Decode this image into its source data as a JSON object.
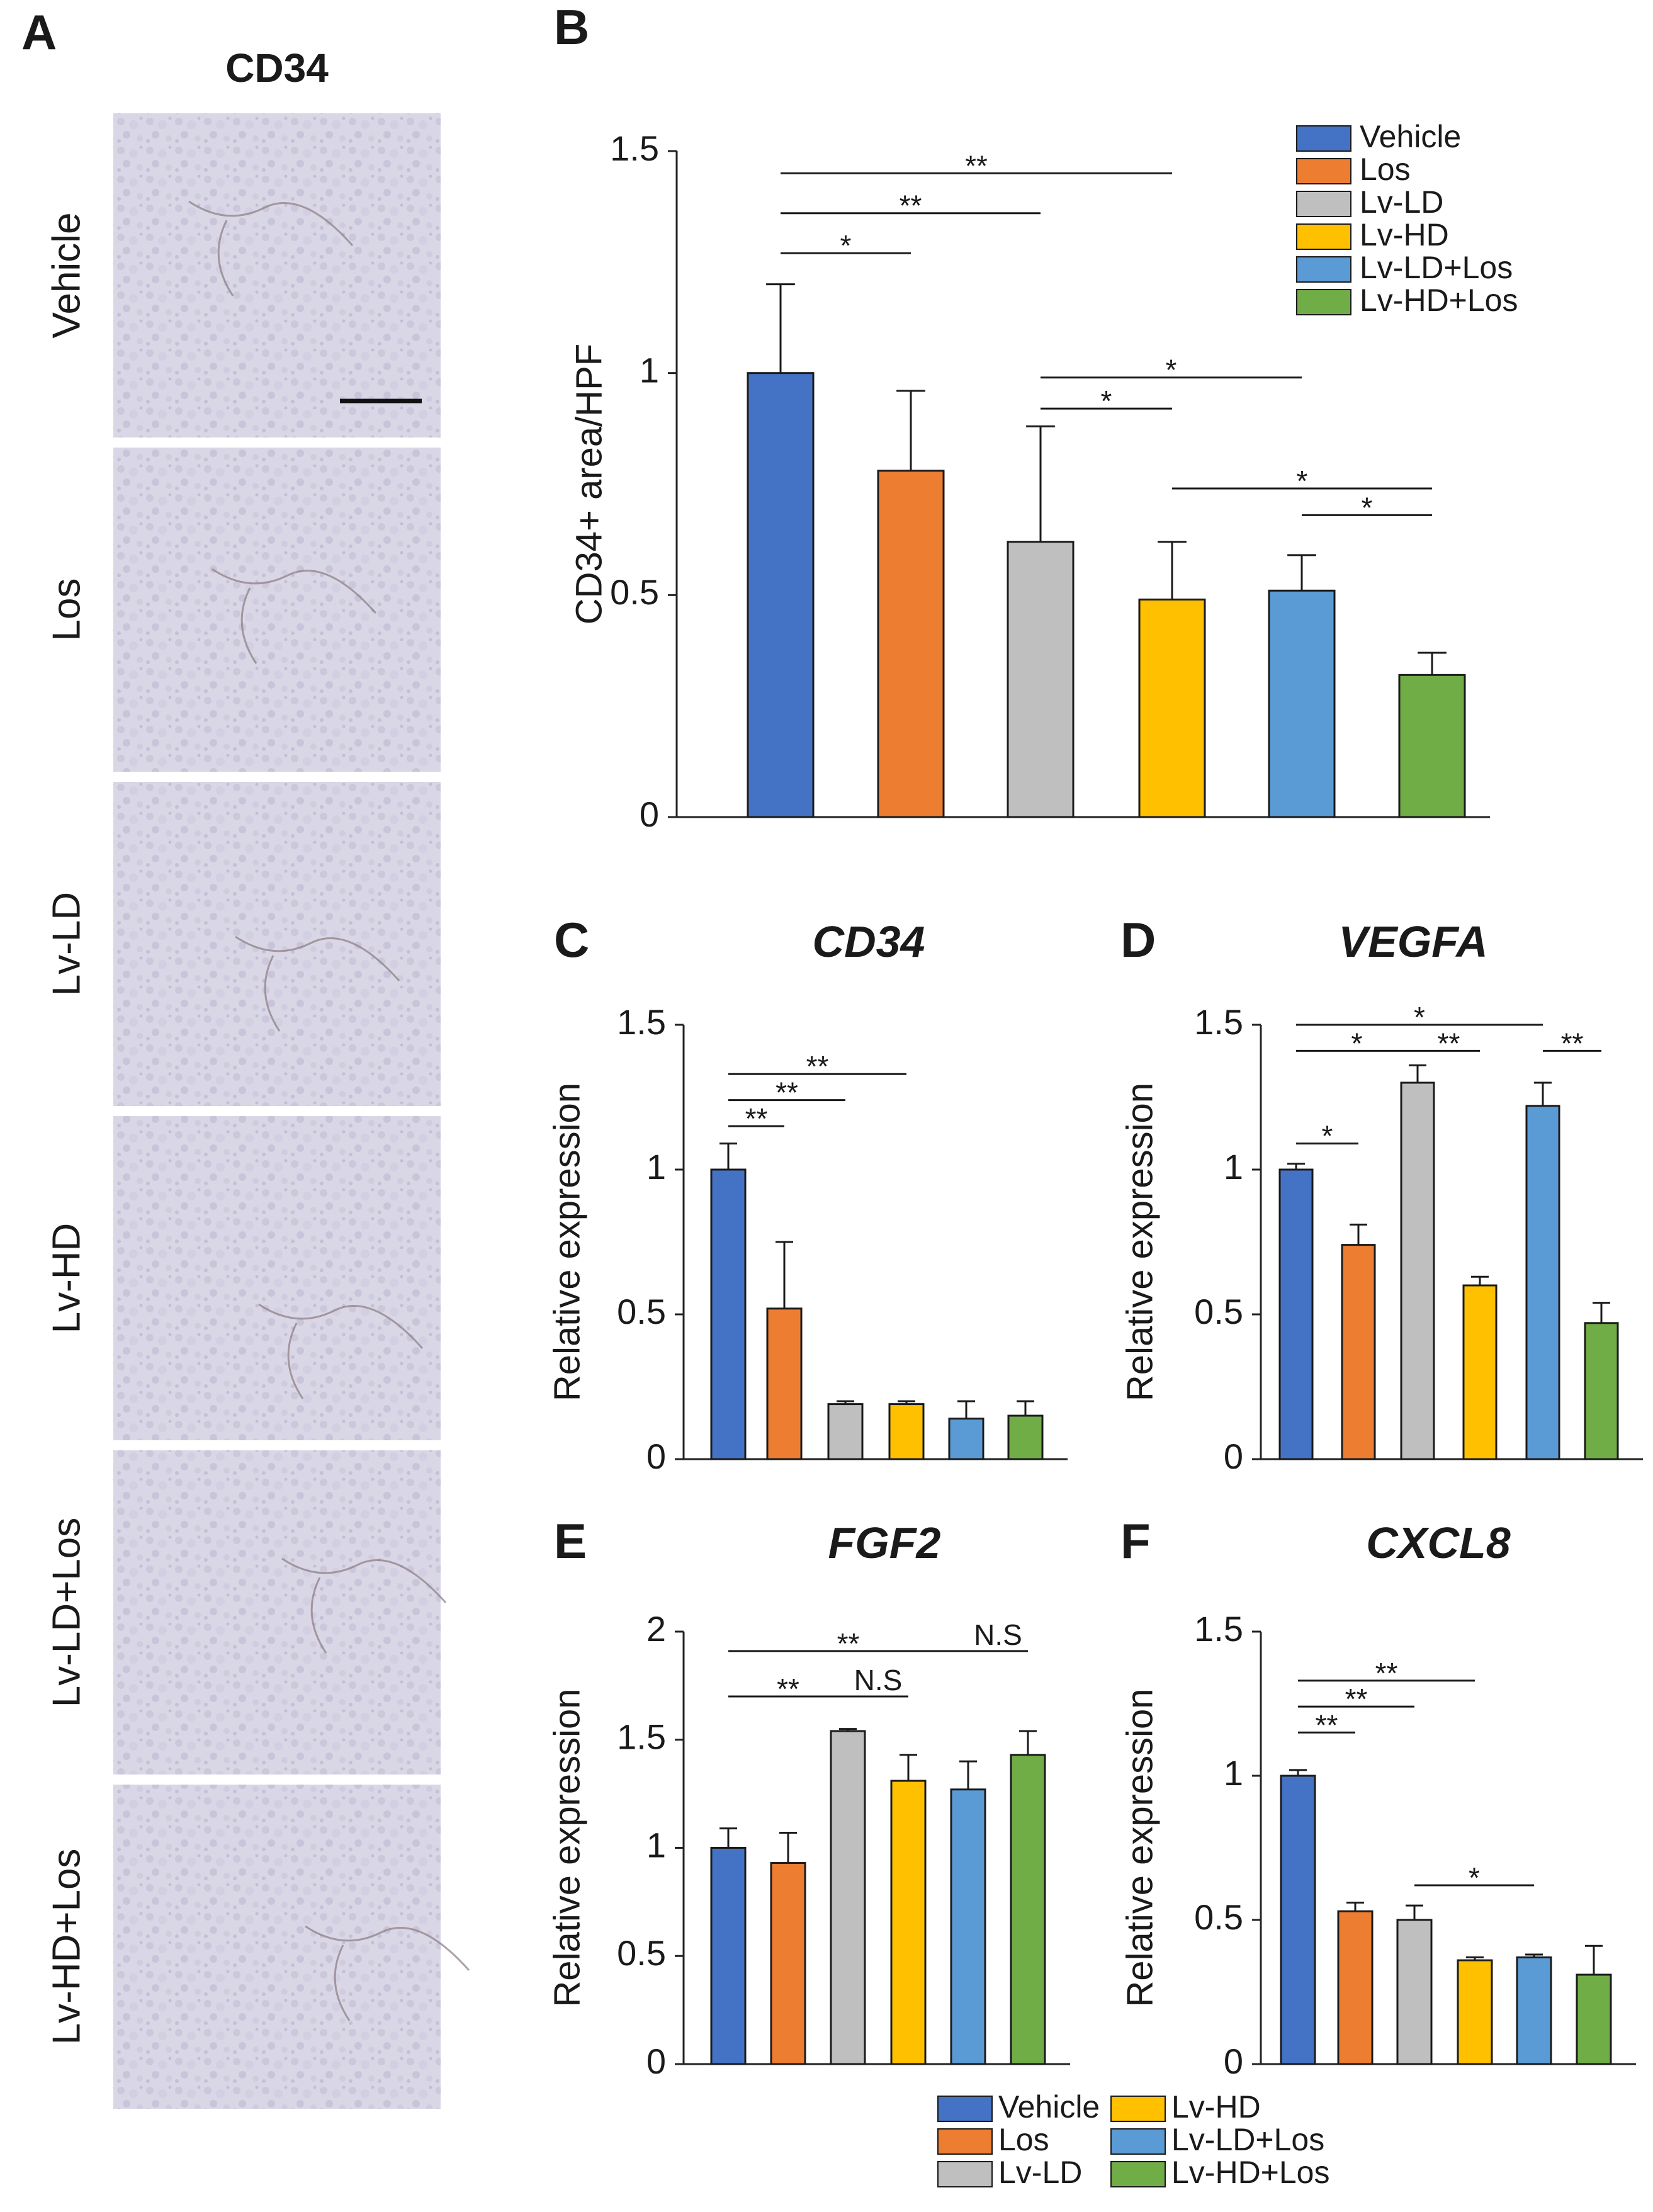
{
  "group_colors": [
    "#4472c4",
    "#ed7d31",
    "#bfbfbf",
    "#ffc000",
    "#5b9bd5",
    "#70ad47"
  ],
  "panel_a": {
    "letter": "A",
    "title": "CD34",
    "rows": [
      "Vehicle",
      "Los",
      "Lv-LD",
      "Lv-HD",
      "Lv-LD+Los",
      "Lv-HD+Los"
    ]
  },
  "legend_b": [
    "Vehicle",
    "Los",
    "Lv-LD",
    "Lv-HD",
    "Lv-LD+Los",
    "Lv-HD+Los"
  ],
  "legend_bottom": [
    "Vehicle",
    "Lv-HD",
    "Los",
    "Lv-LD+Los",
    "Lv-LD",
    "Lv-HD+Los"
  ],
  "chart_data": [
    {
      "id": "B",
      "letter": "B",
      "title": "",
      "type": "bar",
      "ylabel": "CD34+ area/HPF",
      "ylim": [
        0,
        1.5
      ],
      "yticks": [
        0,
        0.5,
        1,
        1.5
      ],
      "ytick_labels": [
        "0",
        "0.5",
        "1",
        "1.5"
      ],
      "categories": [
        "Vehicle",
        "Los",
        "Lv-LD",
        "Lv-HD",
        "Lv-LD+Los",
        "Lv-HD+Los"
      ],
      "values": [
        1.0,
        0.78,
        0.62,
        0.49,
        0.51,
        0.32
      ],
      "errors": [
        0.2,
        0.18,
        0.26,
        0.13,
        0.08,
        0.05
      ],
      "significance": [
        {
          "from": 0,
          "to": 1,
          "label": "*",
          "y": 1.27
        },
        {
          "from": 0,
          "to": 2,
          "label": "**",
          "y": 1.36
        },
        {
          "from": 0,
          "to": 3,
          "label": "**",
          "y": 1.45
        },
        {
          "from": 2,
          "to": 3,
          "label": "*",
          "y": 0.92
        },
        {
          "from": 2,
          "to": 4,
          "label": "*",
          "y": 0.99
        },
        {
          "from": 3,
          "to": 5,
          "label": "*",
          "y": 0.74
        },
        {
          "from": 4,
          "to": 5,
          "label": "*",
          "y": 0.68
        }
      ]
    },
    {
      "id": "C",
      "letter": "C",
      "title": "CD34",
      "type": "bar",
      "ylabel": "Relative expression",
      "ylim": [
        0,
        1.5
      ],
      "yticks": [
        0,
        0.5,
        1,
        1.5
      ],
      "ytick_labels": [
        "0",
        "0.5",
        "1",
        "1.5"
      ],
      "categories": [
        "Vehicle",
        "Los",
        "Lv-LD",
        "Lv-HD",
        "Lv-LD+Los",
        "Lv-HD+Los"
      ],
      "values": [
        1.0,
        0.52,
        0.19,
        0.19,
        0.14,
        0.15
      ],
      "errors": [
        0.09,
        0.23,
        0.01,
        0.01,
        0.06,
        0.05
      ],
      "significance": [
        {
          "from": 0,
          "to": 1,
          "label": "**",
          "y": 1.15
        },
        {
          "from": 0,
          "to": 2,
          "label": "**",
          "y": 1.24
        },
        {
          "from": 0,
          "to": 3,
          "label": "**",
          "y": 1.33
        }
      ]
    },
    {
      "id": "D",
      "letter": "D",
      "title": "VEGFA",
      "type": "bar",
      "ylabel": "Relative expression",
      "ylim": [
        0,
        1.5
      ],
      "yticks": [
        0,
        0.5,
        1,
        1.5
      ],
      "ytick_labels": [
        "0",
        "0.5",
        "1",
        "1.5"
      ],
      "categories": [
        "Vehicle",
        "Los",
        "Lv-LD",
        "Lv-HD",
        "Lv-LD+Los",
        "Lv-HD+Los"
      ],
      "values": [
        1.0,
        0.74,
        1.3,
        0.6,
        1.22,
        0.47
      ],
      "errors": [
        0.02,
        0.07,
        0.06,
        0.03,
        0.08,
        0.07
      ],
      "significance": [
        {
          "from": 0,
          "to": 1,
          "label": "*",
          "y": 1.09
        },
        {
          "from": 0,
          "to": 2,
          "label": "*",
          "y": 1.41
        },
        {
          "from": 2,
          "to": 3,
          "label": "**",
          "y": 1.41
        },
        {
          "from": 0,
          "to": 4,
          "label": "*",
          "y": 1.5
        },
        {
          "from": 4,
          "to": 5,
          "label": "**",
          "y": 1.41
        }
      ]
    },
    {
      "id": "E",
      "letter": "E",
      "title": "FGF2",
      "type": "bar",
      "ylabel": "Relative expression",
      "ylim": [
        0,
        2
      ],
      "yticks": [
        0,
        0.5,
        1,
        1.5,
        2
      ],
      "ytick_labels": [
        "0",
        "0.5",
        "1",
        "1.5",
        "2"
      ],
      "categories": [
        "Vehicle",
        "Los",
        "Lv-LD",
        "Lv-HD",
        "Lv-LD+Los",
        "Lv-HD+Los"
      ],
      "values": [
        1.0,
        0.93,
        1.54,
        1.31,
        1.27,
        1.43
      ],
      "errors": [
        0.09,
        0.14,
        0.01,
        0.12,
        0.13,
        0.11
      ],
      "significance": [
        {
          "from": 0,
          "to": 2,
          "label": "**",
          "y": 1.7
        },
        {
          "from": 2,
          "to": 3,
          "label": "N.S",
          "y": 1.7
        },
        {
          "from": 0,
          "to": 4,
          "label": "**",
          "y": 1.91
        },
        {
          "from": 4,
          "to": 5,
          "label": "N.S",
          "y": 1.91
        }
      ]
    },
    {
      "id": "F",
      "letter": "F",
      "title": "CXCL8",
      "type": "bar",
      "ylabel": "Relative expression",
      "ylim": [
        0,
        1.5
      ],
      "yticks": [
        0,
        0.5,
        1,
        1.5
      ],
      "ytick_labels": [
        "0",
        "0.5",
        "1",
        "1.5"
      ],
      "categories": [
        "Vehicle",
        "Los",
        "Lv-LD",
        "Lv-HD",
        "Lv-LD+Los",
        "Lv-HD+Los"
      ],
      "values": [
        1.0,
        0.53,
        0.5,
        0.36,
        0.37,
        0.31
      ],
      "errors": [
        0.02,
        0.03,
        0.05,
        0.01,
        0.01,
        0.1
      ],
      "significance": [
        {
          "from": 0,
          "to": 1,
          "label": "**",
          "y": 1.15
        },
        {
          "from": 0,
          "to": 2,
          "label": "**",
          "y": 1.24
        },
        {
          "from": 0,
          "to": 3,
          "label": "**",
          "y": 1.33
        },
        {
          "from": 2,
          "to": 4,
          "label": "*",
          "y": 0.62
        }
      ]
    }
  ]
}
